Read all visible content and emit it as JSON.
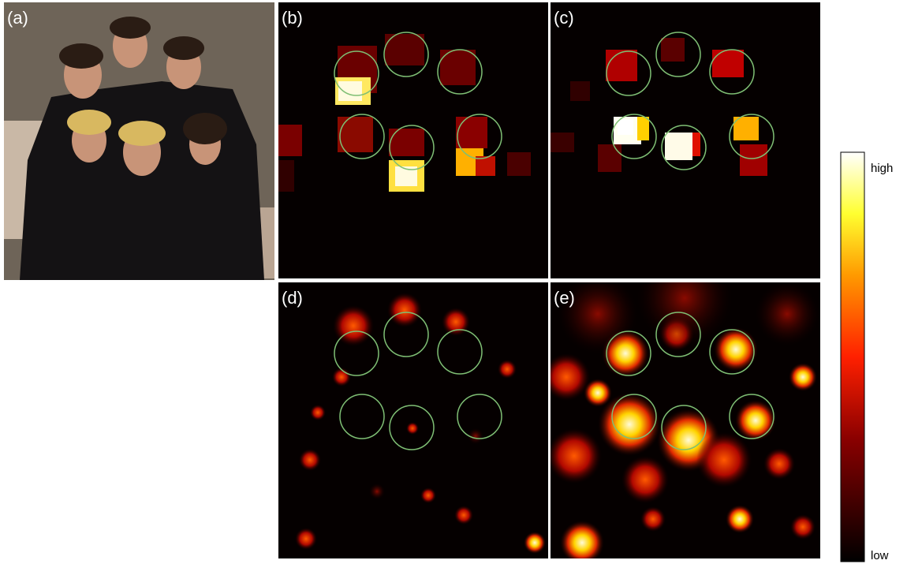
{
  "panels": [
    {
      "label": "(a)"
    },
    {
      "label": "(b)"
    },
    {
      "label": "(c)"
    },
    {
      "label": "(d)"
    },
    {
      "label": "(e)"
    }
  ],
  "colorbar": {
    "high": "high",
    "low": "low"
  }
}
